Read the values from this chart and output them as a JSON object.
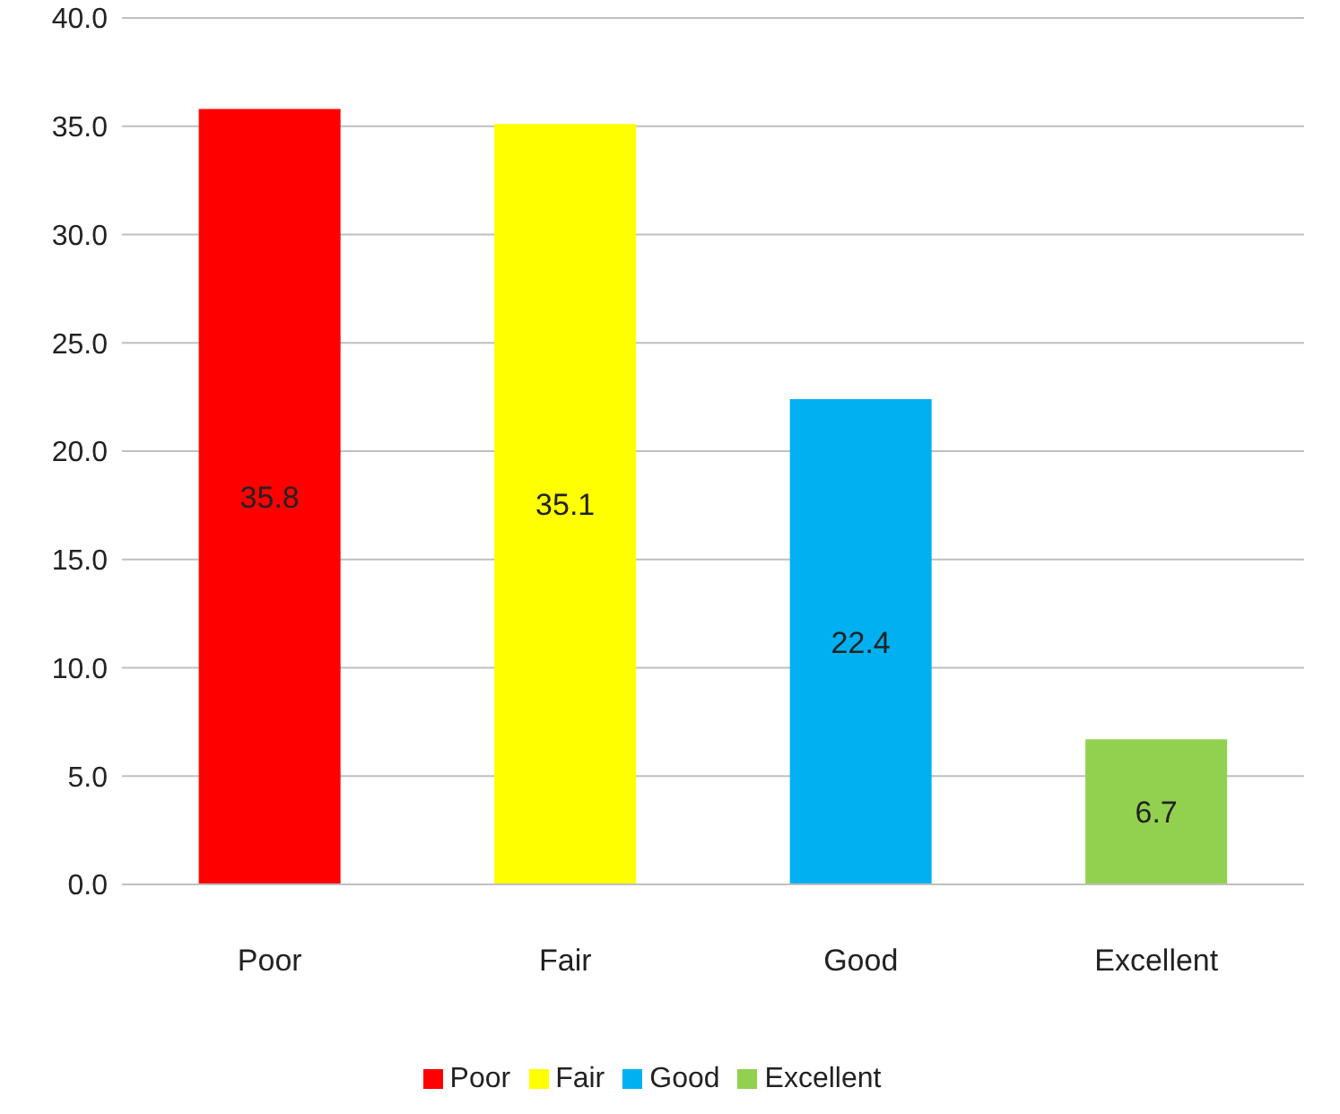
{
  "chart_data": {
    "type": "bar",
    "categories": [
      "Poor",
      "Fair",
      "Good",
      "Excellent"
    ],
    "series": [
      {
        "name": "Poor",
        "color": "#ff0000",
        "values": [
          35.8,
          null,
          null,
          null
        ]
      },
      {
        "name": "Fair",
        "color": "#ffff00",
        "values": [
          null,
          35.1,
          null,
          null
        ]
      },
      {
        "name": "Good",
        "color": "#00b0f0",
        "values": [
          null,
          null,
          22.4,
          null
        ]
      },
      {
        "name": "Excellent",
        "color": "#92d050",
        "values": [
          null,
          null,
          null,
          6.7
        ]
      }
    ],
    "ylim": [
      0,
      40
    ],
    "yticks": [
      {
        "value": 0,
        "label": "0.0"
      },
      {
        "value": 5,
        "label": "5.0"
      },
      {
        "value": 10,
        "label": "10.0"
      },
      {
        "value": 15,
        "label": "15.0"
      },
      {
        "value": 20,
        "label": "20.0"
      },
      {
        "value": 25,
        "label": "25.0"
      },
      {
        "value": 30,
        "label": "30.0"
      },
      {
        "value": 35,
        "label": "35.0"
      },
      {
        "value": 40,
        "label": "40.0"
      }
    ],
    "grid": "y",
    "data_labels": true,
    "legend": "bottom"
  }
}
